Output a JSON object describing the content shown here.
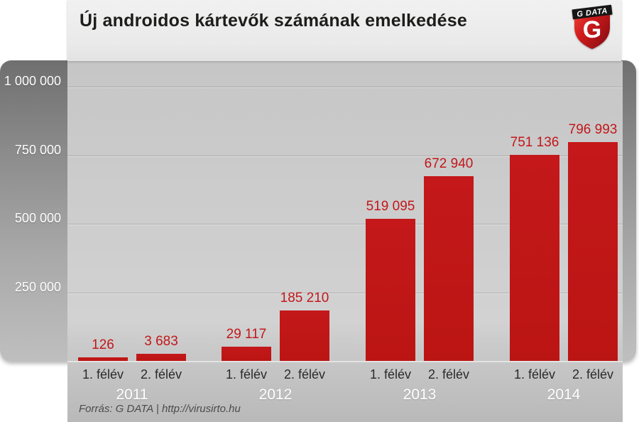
{
  "page": {
    "title": "Új androidos kártevők számának emelkedése"
  },
  "logo": {
    "brand": "G DATA",
    "letter": "G"
  },
  "footer": {
    "source": "Forrás: G DATA | http://virusirto.hu"
  },
  "colors": {
    "bar_red": "#bf1614",
    "value_label_red": "#c2171a",
    "title_text": "#1d1d1b",
    "year_label_white": "#ffffff",
    "axis_label_white": "#ffffff",
    "category_label_dark": "#2a2a2a",
    "source_text_gray": "#4c4c4c"
  },
  "chart_data": {
    "type": "bar",
    "title": "Új androidos kártevők számának emelkedése",
    "xlabel": "",
    "ylabel": "",
    "ylim": [
      0,
      1000000
    ],
    "grid": true,
    "legend": false,
    "yticks": [
      {
        "value": 1000000,
        "label": "1 000 000"
      },
      {
        "value": 750000,
        "label": "750 000"
      },
      {
        "value": 500000,
        "label": "500 000"
      },
      {
        "value": 250000,
        "label": "250 000"
      }
    ],
    "groups": [
      {
        "year": "2011",
        "bars": [
          {
            "label": "1. félév",
            "value": 126,
            "value_label": "126"
          },
          {
            "label": "2. félév",
            "value": 3683,
            "value_label": "3 683"
          }
        ]
      },
      {
        "year": "2012",
        "bars": [
          {
            "label": "1. félév",
            "value": 29117,
            "value_label": "29 117"
          },
          {
            "label": "2. félév",
            "value": 185210,
            "value_label": "185 210"
          }
        ]
      },
      {
        "year": "2013",
        "bars": [
          {
            "label": "1. félév",
            "value": 519095,
            "value_label": "519 095"
          },
          {
            "label": "2. félév",
            "value": 672940,
            "value_label": "672 940"
          }
        ]
      },
      {
        "year": "2014",
        "bars": [
          {
            "label": "1. félév",
            "value": 751136,
            "value_label": "751 136"
          },
          {
            "label": "2. félév",
            "value": 796993,
            "value_label": "796 993"
          }
        ]
      }
    ]
  }
}
